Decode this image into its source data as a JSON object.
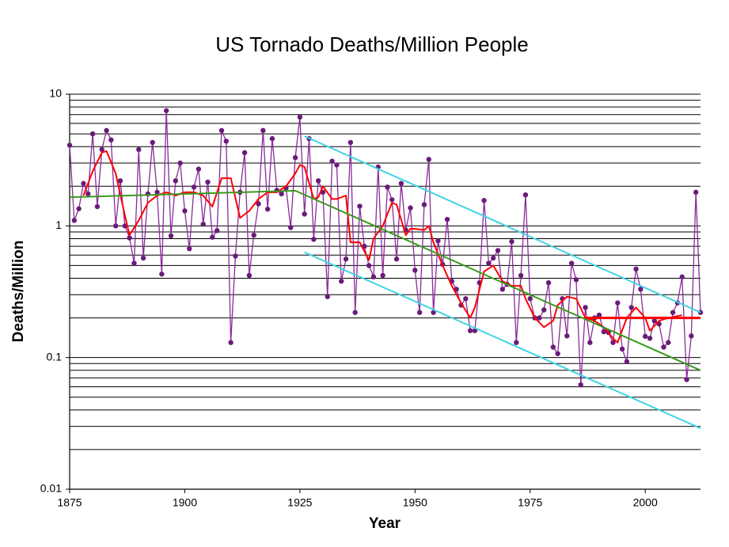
{
  "chart_data": {
    "type": "line",
    "title": "US Tornado Deaths/Million People",
    "x_label": "Year",
    "y_label": "Deaths/Million",
    "xlim": [
      1875,
      2012
    ],
    "xticks": [
      1875,
      1900,
      1925,
      1950,
      1975,
      2000
    ],
    "ylim": [
      0.01,
      10
    ],
    "yticks": [
      0.01,
      0.1,
      1,
      10
    ],
    "log_y": true,
    "grid": true,
    "minor_grid": true,
    "series": [
      {
        "color": "#8b2a9b",
        "marker_color": "#6a1b7a",
        "markers": true,
        "x": [
          1875,
          1876,
          1877,
          1878,
          1879,
          1880,
          1881,
          1882,
          1883,
          1884,
          1885,
          1886,
          1887,
          1888,
          1889,
          1890,
          1891,
          1892,
          1893,
          1894,
          1895,
          1896,
          1897,
          1898,
          1899,
          1900,
          1901,
          1902,
          1903,
          1904,
          1905,
          1906,
          1907,
          1908,
          1909,
          1910,
          1911,
          1912,
          1913,
          1914,
          1915,
          1916,
          1917,
          1918,
          1919,
          1920,
          1921,
          1922,
          1923,
          1924,
          1925,
          1926,
          1927,
          1928,
          1929,
          1930,
          1931,
          1932,
          1933,
          1934,
          1935,
          1936,
          1937,
          1938,
          1939,
          1940,
          1941,
          1942,
          1943,
          1944,
          1945,
          1946,
          1947,
          1948,
          1949,
          1950,
          1951,
          1952,
          1953,
          1954,
          1955,
          1956,
          1957,
          1958,
          1959,
          1960,
          1961,
          1962,
          1963,
          1964,
          1965,
          1966,
          1967,
          1968,
          1969,
          1970,
          1971,
          1972,
          1973,
          1974,
          1975,
          1976,
          1977,
          1978,
          1979,
          1980,
          1981,
          1982,
          1983,
          1984,
          1985,
          1986,
          1987,
          1988,
          1989,
          1990,
          1991,
          1992,
          1993,
          1994,
          1995,
          1996,
          1997,
          1998,
          1999,
          2000,
          2001,
          2002,
          2003,
          2004,
          2005,
          2006,
          2007,
          2008,
          2009,
          2010,
          2011,
          2012
        ],
        "values": [
          4.1,
          1.1,
          1.35,
          2.1,
          1.75,
          5.0,
          1.4,
          3.8,
          5.3,
          4.5,
          1.0,
          2.2,
          1.0,
          0.81,
          0.52,
          3.8,
          0.57,
          1.75,
          4.3,
          1.8,
          0.43,
          7.5,
          0.84,
          2.2,
          3.0,
          1.3,
          0.67,
          1.97,
          2.7,
          1.03,
          2.15,
          0.82,
          0.92,
          5.3,
          4.4,
          0.13,
          0.59,
          1.8,
          3.6,
          0.42,
          0.85,
          1.47,
          5.3,
          1.34,
          4.6,
          1.86,
          1.75,
          1.94,
          0.97,
          3.3,
          6.7,
          1.23,
          4.6,
          0.79,
          2.2,
          1.8,
          0.29,
          3.1,
          2.9,
          0.38,
          0.56,
          4.3,
          0.22,
          1.41,
          0.7,
          0.5,
          0.41,
          2.8,
          0.42,
          1.97,
          1.58,
          0.56,
          2.1,
          0.93,
          1.37,
          0.46,
          0.22,
          1.45,
          3.2,
          0.22,
          0.77,
          0.51,
          1.12,
          0.38,
          0.33,
          0.25,
          0.28,
          0.16,
          0.16,
          0.37,
          1.56,
          0.52,
          0.57,
          0.65,
          0.33,
          0.36,
          0.76,
          0.13,
          0.42,
          1.72,
          0.28,
          0.2,
          0.2,
          0.23,
          0.37,
          0.12,
          0.107,
          0.28,
          0.146,
          0.52,
          0.39,
          0.062,
          0.24,
          0.13,
          0.2,
          0.21,
          0.157,
          0.155,
          0.13,
          0.26,
          0.116,
          0.093,
          0.24,
          0.47,
          0.33,
          0.145,
          0.14,
          0.19,
          0.18,
          0.12,
          0.13,
          0.22,
          0.26,
          0.41,
          0.068,
          0.146,
          1.8,
          0.22
        ]
      },
      {
        "color": "#ff0000",
        "width": 2,
        "x": [
          1878,
          1880,
          1882,
          1883,
          1885,
          1887,
          1888,
          1890,
          1892,
          1894,
          1896,
          1898,
          1900,
          1902,
          1904,
          1906,
          1908,
          1910,
          1912,
          1914,
          1916,
          1918,
          1920,
          1922,
          1924,
          1925,
          1926,
          1928,
          1929,
          1930,
          1932,
          1933,
          1935,
          1936,
          1938,
          1940,
          1941,
          1943,
          1945,
          1946,
          1948,
          1949,
          1950,
          1952,
          1953,
          1954,
          1956,
          1958,
          1960,
          1962,
          1963,
          1965,
          1967,
          1969,
          1971,
          1973,
          1974,
          1976,
          1978,
          1980,
          1981,
          1983,
          1985,
          1987,
          1989,
          1991,
          1993,
          1994,
          1996,
          1998,
          2000,
          2001,
          2003,
          2005,
          2008
        ],
        "values": [
          1.7,
          2.6,
          3.6,
          3.7,
          2.5,
          1.2,
          0.85,
          1.1,
          1.5,
          1.7,
          1.8,
          1.7,
          1.8,
          1.8,
          1.7,
          1.4,
          2.3,
          2.3,
          1.15,
          1.3,
          1.6,
          1.8,
          1.8,
          2.0,
          2.5,
          2.9,
          2.8,
          1.6,
          1.65,
          2.0,
          1.6,
          1.6,
          1.7,
          0.75,
          0.75,
          0.55,
          0.8,
          1.0,
          1.5,
          1.45,
          0.85,
          0.95,
          0.95,
          0.93,
          1.0,
          0.75,
          0.5,
          0.35,
          0.26,
          0.2,
          0.24,
          0.45,
          0.5,
          0.38,
          0.35,
          0.35,
          0.28,
          0.2,
          0.17,
          0.19,
          0.25,
          0.29,
          0.28,
          0.2,
          0.19,
          0.17,
          0.14,
          0.13,
          0.2,
          0.24,
          0.2,
          0.16,
          0.19,
          0.2,
          0.21
        ]
      },
      {
        "color": "#ff0000",
        "width": 3,
        "x": [
          1987,
          2012
        ],
        "values": [
          0.2,
          0.2
        ]
      },
      {
        "color": "#3a9a1e",
        "width": 2,
        "x": [
          1875,
          1924,
          2012
        ],
        "values": [
          1.65,
          1.85,
          0.08
        ]
      },
      {
        "color": "#40d4e4",
        "width": 2,
        "x": [
          1926,
          2012
        ],
        "values": [
          4.8,
          0.22
        ]
      },
      {
        "color": "#40d4e4",
        "width": 2,
        "x": [
          1926,
          2012
        ],
        "values": [
          0.63,
          0.029
        ]
      }
    ]
  }
}
